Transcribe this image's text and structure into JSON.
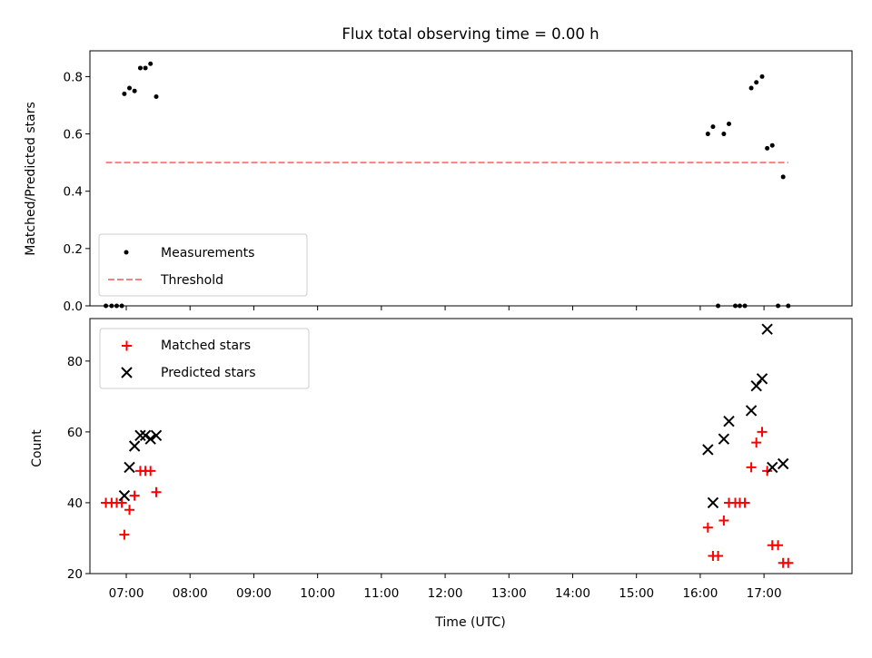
{
  "chart_data": [
    {
      "type": "scatter",
      "title": "Flux total observing time = 0.00 h",
      "xlabel": "",
      "ylabel": "Matched/Predicted stars",
      "xlim": [
        6.43,
        18.38
      ],
      "ylim": [
        0.0,
        0.89
      ],
      "yticks": [
        0.0,
        0.2,
        0.4,
        0.6,
        0.8
      ],
      "ytick_labels": [
        "0.0",
        "0.2",
        "0.4",
        "0.6",
        "0.8"
      ],
      "legend_position": "lower-left",
      "series": [
        {
          "name": "Measurements",
          "marker": "dot",
          "color": "#000000",
          "points": [
            [
              6.68,
              0.0
            ],
            [
              6.77,
              0.0
            ],
            [
              6.85,
              0.0
            ],
            [
              6.93,
              0.0
            ],
            [
              6.97,
              0.74
            ],
            [
              7.05,
              0.76
            ],
            [
              7.13,
              0.75
            ],
            [
              7.22,
              0.83
            ],
            [
              7.3,
              0.83
            ],
            [
              7.38,
              0.845
            ],
            [
              7.47,
              0.73
            ],
            [
              16.12,
              0.6
            ],
            [
              16.2,
              0.625
            ],
            [
              16.28,
              0.0
            ],
            [
              16.37,
              0.6
            ],
            [
              16.45,
              0.635
            ],
            [
              16.55,
              0.0
            ],
            [
              16.62,
              0.0
            ],
            [
              16.7,
              0.0
            ],
            [
              16.8,
              0.76
            ],
            [
              16.88,
              0.78
            ],
            [
              16.97,
              0.8
            ],
            [
              17.05,
              0.55
            ],
            [
              17.13,
              0.56
            ],
            [
              17.22,
              0.0
            ],
            [
              17.3,
              0.45
            ],
            [
              17.38,
              0.0
            ]
          ]
        },
        {
          "name": "Threshold",
          "type": "line",
          "style": "dashed",
          "color": "#ff7f7f",
          "points": [
            [
              6.68,
              0.5
            ],
            [
              17.38,
              0.5
            ]
          ]
        }
      ]
    },
    {
      "type": "scatter",
      "title": "",
      "xlabel": "Time (UTC)",
      "ylabel": "Count",
      "xlim": [
        6.43,
        18.38
      ],
      "ylim": [
        20,
        92
      ],
      "yticks": [
        20,
        40,
        60,
        80
      ],
      "ytick_labels": [
        "20",
        "40",
        "60",
        "80"
      ],
      "xticks": [
        7,
        8,
        9,
        10,
        11,
        12,
        13,
        14,
        15,
        16,
        17
      ],
      "xtick_labels": [
        "07:00",
        "08:00",
        "09:00",
        "10:00",
        "11:00",
        "12:00",
        "13:00",
        "14:00",
        "15:00",
        "16:00",
        "17:00"
      ],
      "legend_position": "upper-left",
      "series": [
        {
          "name": "Matched stars",
          "marker": "plus",
          "color": "#ff0000",
          "points": [
            [
              6.68,
              40
            ],
            [
              6.77,
              40
            ],
            [
              6.85,
              40
            ],
            [
              6.93,
              40
            ],
            [
              6.97,
              31
            ],
            [
              7.05,
              38
            ],
            [
              7.13,
              42
            ],
            [
              7.22,
              49
            ],
            [
              7.3,
              49
            ],
            [
              7.38,
              49
            ],
            [
              7.47,
              43
            ],
            [
              16.12,
              33
            ],
            [
              16.2,
              25
            ],
            [
              16.28,
              25
            ],
            [
              16.37,
              35
            ],
            [
              16.45,
              40
            ],
            [
              16.55,
              40
            ],
            [
              16.62,
              40
            ],
            [
              16.7,
              40
            ],
            [
              16.8,
              50
            ],
            [
              16.88,
              57
            ],
            [
              16.97,
              60
            ],
            [
              17.05,
              49
            ],
            [
              17.13,
              28
            ],
            [
              17.22,
              28
            ],
            [
              17.3,
              23
            ],
            [
              17.38,
              23
            ]
          ]
        },
        {
          "name": "Predicted stars",
          "marker": "x",
          "color": "#000000",
          "points": [
            [
              6.97,
              42
            ],
            [
              7.05,
              50
            ],
            [
              7.13,
              56
            ],
            [
              7.22,
              59
            ],
            [
              7.3,
              59
            ],
            [
              7.38,
              58
            ],
            [
              7.47,
              59
            ],
            [
              16.12,
              55
            ],
            [
              16.2,
              40
            ],
            [
              16.37,
              58
            ],
            [
              16.45,
              63
            ],
            [
              16.8,
              66
            ],
            [
              16.88,
              73
            ],
            [
              16.97,
              75
            ],
            [
              17.05,
              89
            ],
            [
              17.13,
              50
            ],
            [
              17.3,
              51
            ]
          ]
        }
      ]
    }
  ]
}
